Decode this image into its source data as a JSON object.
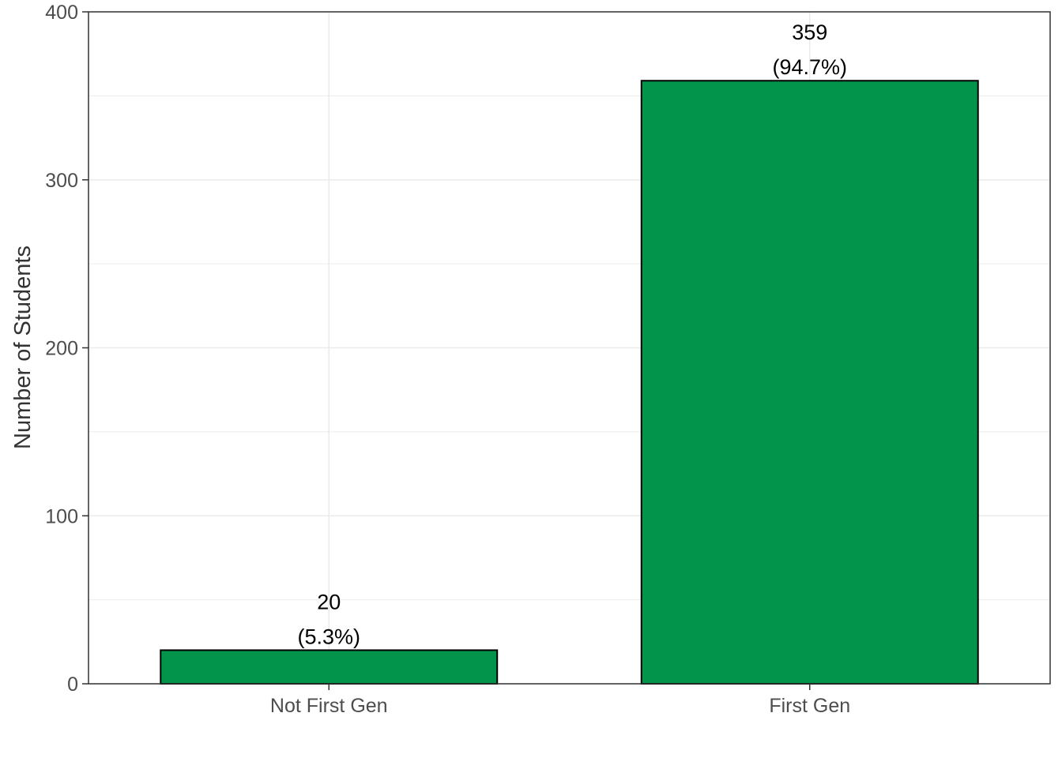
{
  "chart_data": {
    "type": "bar",
    "categories": [
      "Not First Gen",
      "First Gen"
    ],
    "values": [
      20,
      359
    ],
    "labels": [
      {
        "count": "20",
        "percent": "(5.3%)"
      },
      {
        "count": "359",
        "percent": "(94.7%)"
      }
    ],
    "title": "",
    "xlabel": "",
    "ylabel": "Number of Students",
    "ylim": [
      0,
      400
    ],
    "yticks": [
      0,
      100,
      200,
      300,
      400
    ],
    "grid": true,
    "legend": "none",
    "bar_color": "#03944B",
    "bar_outline": "#000000"
  }
}
